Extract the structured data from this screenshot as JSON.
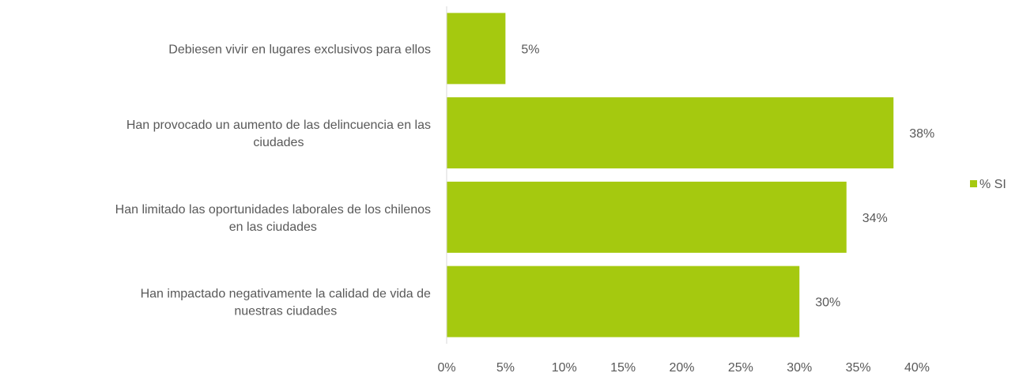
{
  "chart_data": {
    "type": "bar",
    "orientation": "horizontal",
    "categories": [
      [
        "Debiesen vivir en lugares exclusivos para ellos"
      ],
      [
        "Han provocado un aumento de las delincuencia en las",
        "ciudades"
      ],
      [
        "Han limitado las oportunidades laborales de los chilenos",
        "en las ciudades"
      ],
      [
        "Han impactado negativamente la calidad de vida de",
        "nuestras ciudades"
      ]
    ],
    "series": [
      {
        "name": "% SI",
        "values": [
          5,
          38,
          34,
          30
        ],
        "labels": [
          "5%",
          "38%",
          "34%",
          "30%"
        ],
        "color": "#a5c90f"
      }
    ],
    "xlim": [
      0,
      40
    ],
    "xticks": [
      0,
      5,
      10,
      15,
      20,
      25,
      30,
      35,
      40
    ],
    "xtick_labels": [
      "0%",
      "5%",
      "10%",
      "15%",
      "20%",
      "25%",
      "30%",
      "35%",
      "40%"
    ],
    "grid": false,
    "legend_position": "right",
    "title": "",
    "xlabel": "",
    "ylabel": ""
  }
}
